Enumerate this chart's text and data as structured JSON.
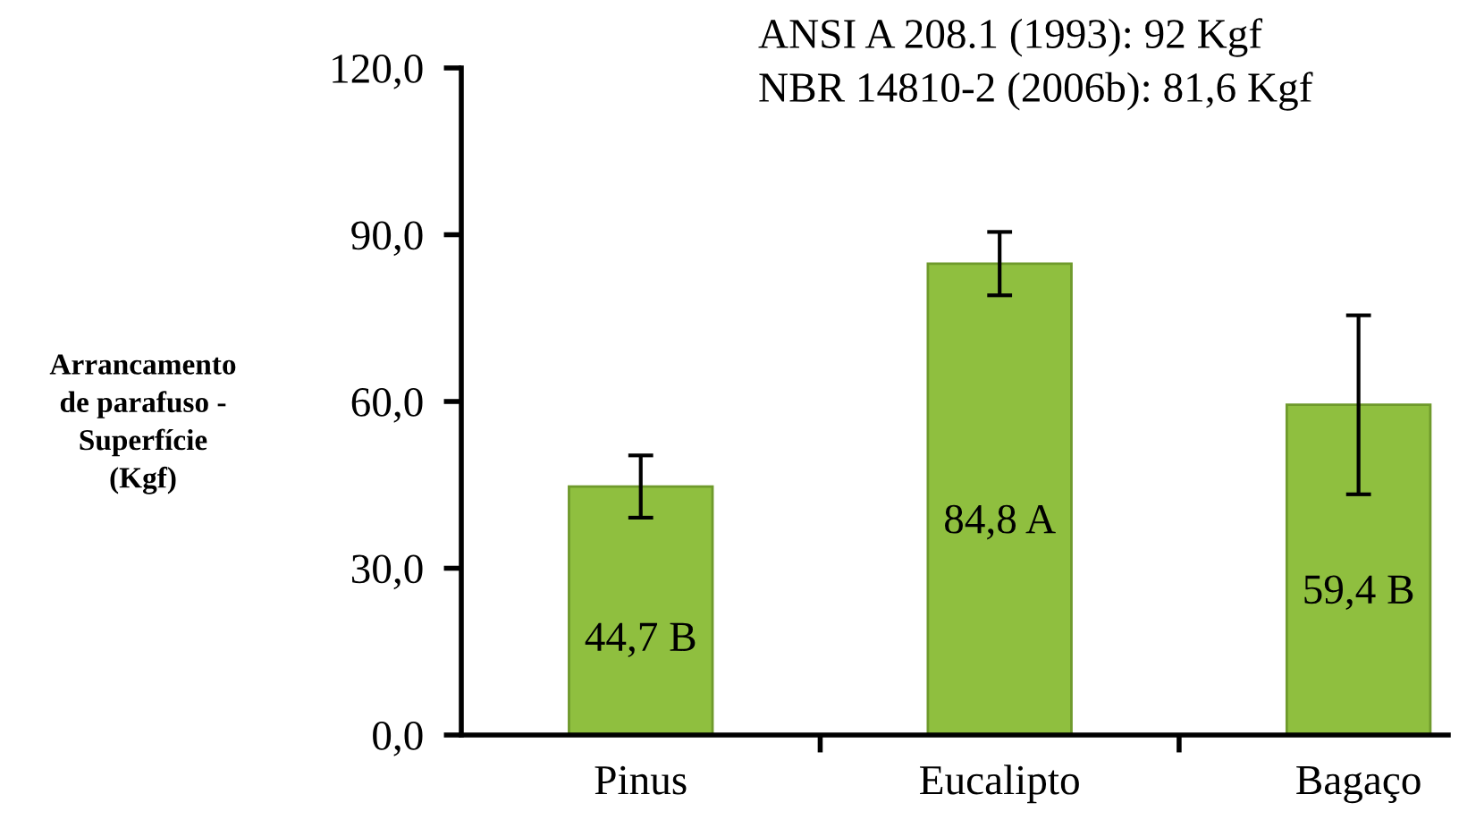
{
  "chart_data": {
    "type": "bar",
    "ylabel": "Arrancamento de parafuso - Superfície (Kgf)",
    "categories": [
      "Pinus",
      "Eucalipto",
      "Bagaço"
    ],
    "values": [
      44.7,
      84.8,
      59.4
    ],
    "errors": [
      5.6,
      5.7,
      16.1
    ],
    "value_labels": [
      "44,7 B",
      "84,8 A",
      "59,4 B"
    ],
    "color": "#8fbf3f",
    "ylim": [
      0,
      120
    ],
    "yticks": [
      {
        "value": 0,
        "label": "0,0"
      },
      {
        "value": 30,
        "label": "30,0"
      },
      {
        "value": 60,
        "label": "60,0"
      },
      {
        "value": 90,
        "label": "90,0"
      },
      {
        "value": 120,
        "label": "120,0"
      }
    ],
    "annotations": [
      "ANSI A 208.1 (1993): 92 Kgf",
      "NBR 14810-2 (2006b): 81,6 Kgf"
    ],
    "grid": false,
    "legend": false
  }
}
